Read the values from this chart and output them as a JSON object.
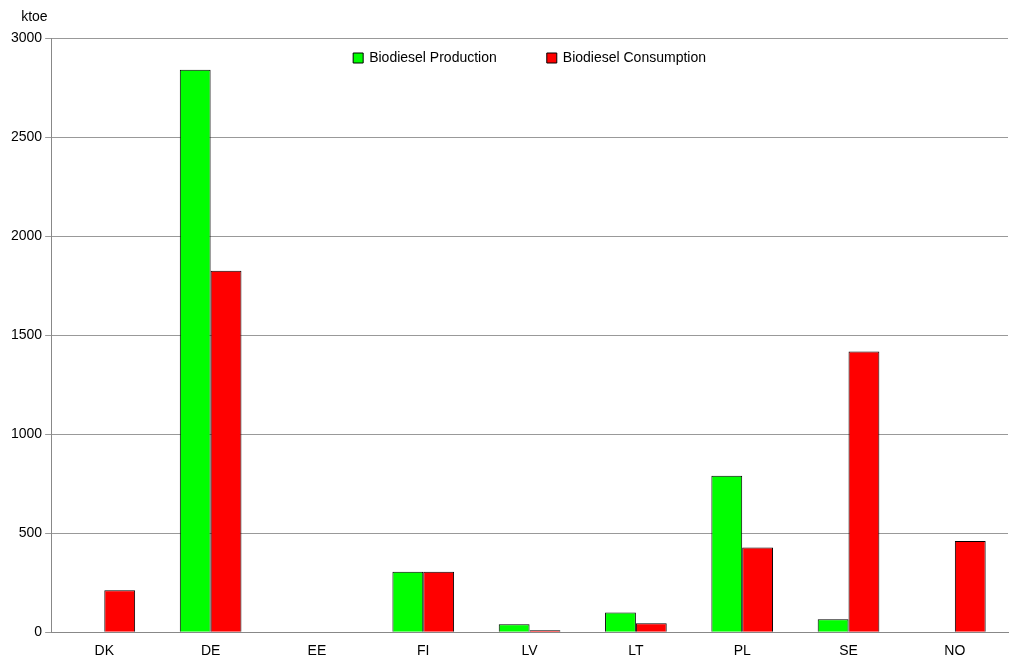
{
  "chart_data": {
    "type": "bar",
    "ylabel": "ktoe",
    "categories": [
      "DK",
      "DE",
      "EE",
      "FI",
      "LV",
      "LT",
      "PL",
      "SE",
      "NO"
    ],
    "series": [
      {
        "name": "Biodiesel Production",
        "color": "#00ff00",
        "values": [
          0,
          2840,
          0,
          305,
          40,
          100,
          790,
          65,
          0
        ]
      },
      {
        "name": "Biodiesel Consumption",
        "color": "#ff0000",
        "values": [
          212,
          1825,
          0,
          305,
          10,
          45,
          428,
          1417,
          460
        ]
      }
    ],
    "ylim": [
      0,
      3000
    ],
    "yticks": [
      0,
      500,
      1000,
      1500,
      2000,
      2500,
      3000
    ],
    "grid": "y",
    "legend": "top"
  }
}
